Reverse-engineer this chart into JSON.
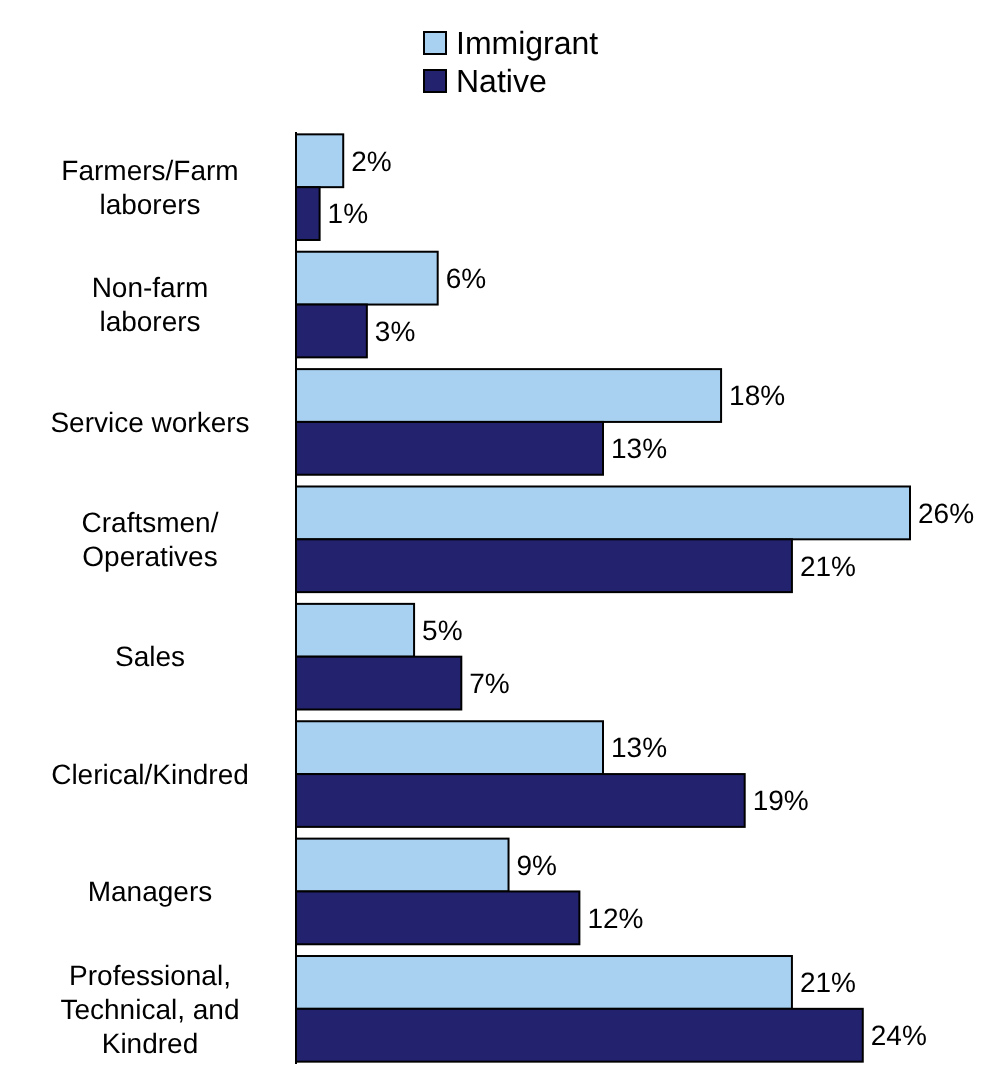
{
  "chart_data": {
    "type": "bar",
    "orientation": "horizontal",
    "categories": [
      "Farmers/Farm laborers",
      "Non-farm laborers",
      "Service workers",
      "Craftsmen/ Operatives",
      "Sales",
      "Clerical/Kindred",
      "Managers",
      "Professional, Technical, and Kindred"
    ],
    "series": [
      {
        "name": "Immigrant",
        "color": "#a8d0f0",
        "values": [
          2,
          6,
          18,
          26,
          5,
          13,
          9,
          21
        ],
        "value_labels": [
          "2%",
          "6%",
          "18%",
          "26%",
          "5%",
          "13%",
          "9%",
          "21%"
        ]
      },
      {
        "name": "Native",
        "color": "#22226e",
        "values": [
          1,
          3,
          13,
          21,
          7,
          19,
          12,
          24
        ],
        "value_labels": [
          "1%",
          "3%",
          "13%",
          "21%",
          "7%",
          "19%",
          "12%",
          "24%"
        ]
      }
    ],
    "legend": "top",
    "grid": false
  }
}
